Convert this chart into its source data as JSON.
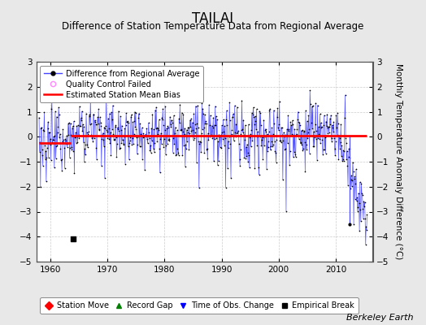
{
  "title": "TAILAI",
  "subtitle": "Difference of Station Temperature Data from Regional Average",
  "ylabel": "Monthly Temperature Anomaly Difference (°C)",
  "xlabel_ticks": [
    1960,
    1970,
    1980,
    1990,
    2000,
    2010
  ],
  "xlim": [
    1957.5,
    2016.5
  ],
  "ylim": [
    -5,
    3
  ],
  "yticks": [
    -5,
    -4,
    -3,
    -2,
    -1,
    0,
    1,
    2,
    3
  ],
  "line_color": "#4444ff",
  "dot_color": "#000000",
  "bias_color": "#ff0000",
  "bias_value_early": -0.25,
  "bias_value_late": 0.05,
  "bias_break_year": 1963.5,
  "background_color": "#e8e8e8",
  "plot_bg_color": "#ffffff",
  "grid_color": "#cccccc",
  "empirical_break_year": 1964.0,
  "empirical_break_value": -4.1,
  "obs_change_year": 2012.5,
  "obs_change_value": -3.5,
  "font_size_title": 12,
  "font_size_subtitle": 8.5,
  "font_size_axis": 7.5,
  "font_size_legend": 7,
  "font_size_watermark": 8,
  "watermark": "Berkeley Earth",
  "legend1_items": [
    "Difference from Regional Average",
    "Quality Control Failed",
    "Estimated Station Mean Bias"
  ],
  "legend2_items": [
    "Station Move",
    "Record Gap",
    "Time of Obs. Change",
    "Empirical Break"
  ]
}
